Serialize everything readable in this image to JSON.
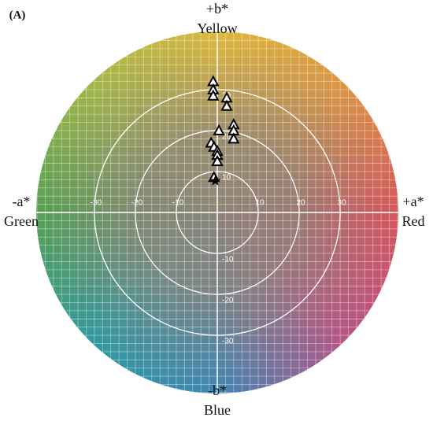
{
  "chart_data": {
    "type": "scatter",
    "panel_label": "(A)",
    "labels": {
      "top_sign": "+b*",
      "top": "Yellow",
      "bottom_sign": "-b*",
      "bottom": "Blue",
      "left_sign": "-a*",
      "left": "Green",
      "right_sign": "+a*",
      "right": "Red"
    },
    "xlim": [
      -44.2,
      44.2
    ],
    "ylim": [
      -44.2,
      44.2
    ],
    "xticks": [
      -30,
      -20,
      -10,
      10,
      20,
      30
    ],
    "yticks": [
      -30,
      -20,
      -10,
      10,
      20,
      30
    ],
    "grid": true,
    "series": [
      {
        "marker": "triangle",
        "color": "#000000",
        "x": [
          -1,
          -1,
          -1,
          2.3,
          2.3,
          4,
          4,
          4,
          0.4,
          -1.5,
          -0.8,
          0,
          0,
          0,
          -0.8
        ],
        "values": [
          32,
          30,
          28.5,
          28,
          26,
          21.5,
          20,
          18,
          20,
          17,
          16,
          15,
          14,
          12.5,
          8.6
        ]
      },
      {
        "marker": "star",
        "color": "#000000",
        "x": [
          -0.5
        ],
        "values": [
          7.7
        ]
      }
    ]
  }
}
